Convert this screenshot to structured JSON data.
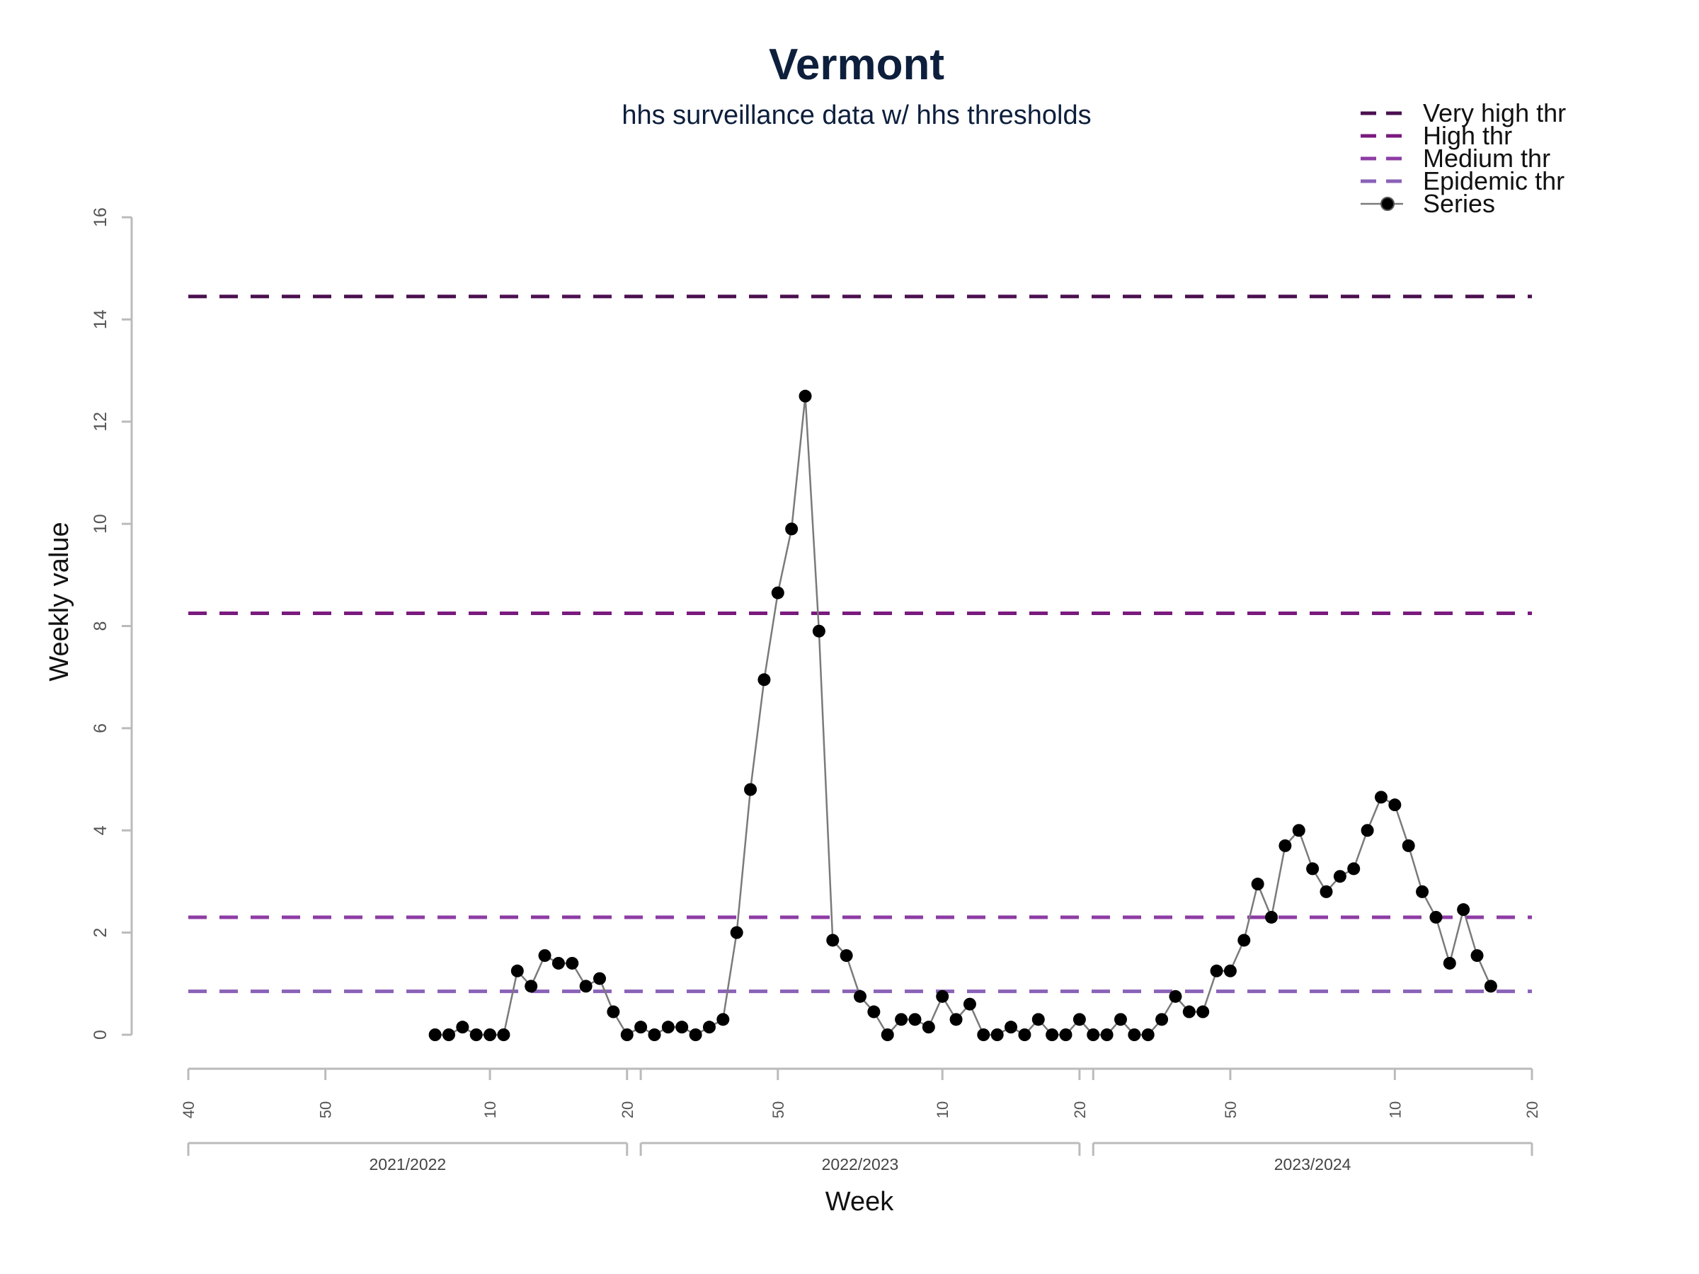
{
  "chart_data": {
    "type": "line",
    "title": "Vermont",
    "subtitle": "hhs surveillance data w/ hhs thresholds",
    "xlabel": "Week",
    "ylabel": "Weekly value",
    "ylim": [
      0,
      16
    ],
    "yticks": [
      "0",
      "2",
      "4",
      "6",
      "8",
      "10",
      "12",
      "14",
      "16"
    ],
    "xrange": [
      0,
      98
    ],
    "xticks": [
      {
        "index": 0,
        "label": "40"
      },
      {
        "index": 10,
        "label": "50"
      },
      {
        "index": 22,
        "label": "10"
      },
      {
        "index": 32,
        "label": "20"
      },
      {
        "index": 33,
        "label": ""
      },
      {
        "index": 43,
        "label": "50"
      },
      {
        "index": 55,
        "label": "10"
      },
      {
        "index": 65,
        "label": "20"
      },
      {
        "index": 66,
        "label": ""
      },
      {
        "index": 76,
        "label": "50"
      },
      {
        "index": 88,
        "label": "10"
      },
      {
        "index": 98,
        "label": "20"
      }
    ],
    "seasons": [
      {
        "label": "2021/2022",
        "start": 0,
        "end": 32
      },
      {
        "label": "2022/2023",
        "start": 33,
        "end": 65
      },
      {
        "label": "2023/2024",
        "start": 66,
        "end": 98
      }
    ],
    "thresholds": [
      {
        "name": "Very high thr",
        "value": 14.45,
        "color": "#4a0f4f"
      },
      {
        "name": "High thr",
        "value": 8.25,
        "color": "#7a1a7e"
      },
      {
        "name": "Medium thr",
        "value": 2.3,
        "color": "#8e3ca5"
      },
      {
        "name": "Epidemic thr",
        "value": 0.85,
        "color": "#8a62b8"
      }
    ],
    "series": [
      {
        "name": "Series",
        "color": "#7a7a7a",
        "marker_color": "#000000",
        "start_index": 18,
        "values": [
          0,
          0,
          0.15,
          0,
          0,
          0,
          1.25,
          0.95,
          1.55,
          1.4,
          1.4,
          0.95,
          1.1,
          0.45,
          0,
          0.15,
          0,
          0.15,
          0.15,
          0,
          0.15,
          0.3,
          2.0,
          4.8,
          6.95,
          8.65,
          9.9,
          12.5,
          7.9,
          1.85,
          1.55,
          0.75,
          0.45,
          0,
          0.3,
          0.3,
          0.15,
          0.75,
          0.3,
          0.6,
          0,
          0,
          0.15,
          0,
          0.3,
          0,
          0,
          0.3,
          0,
          0,
          0.3,
          0,
          0,
          0.3,
          0.75,
          0.45,
          0.45,
          1.25,
          1.25,
          1.85,
          2.95,
          2.3,
          3.7,
          4.0,
          3.25,
          2.8,
          3.1,
          3.25,
          4.0,
          4.65,
          4.5,
          3.7,
          2.8,
          2.3,
          1.4,
          2.45,
          1.55,
          0.95
        ]
      }
    ],
    "legend": {
      "placement": "top-right"
    }
  }
}
